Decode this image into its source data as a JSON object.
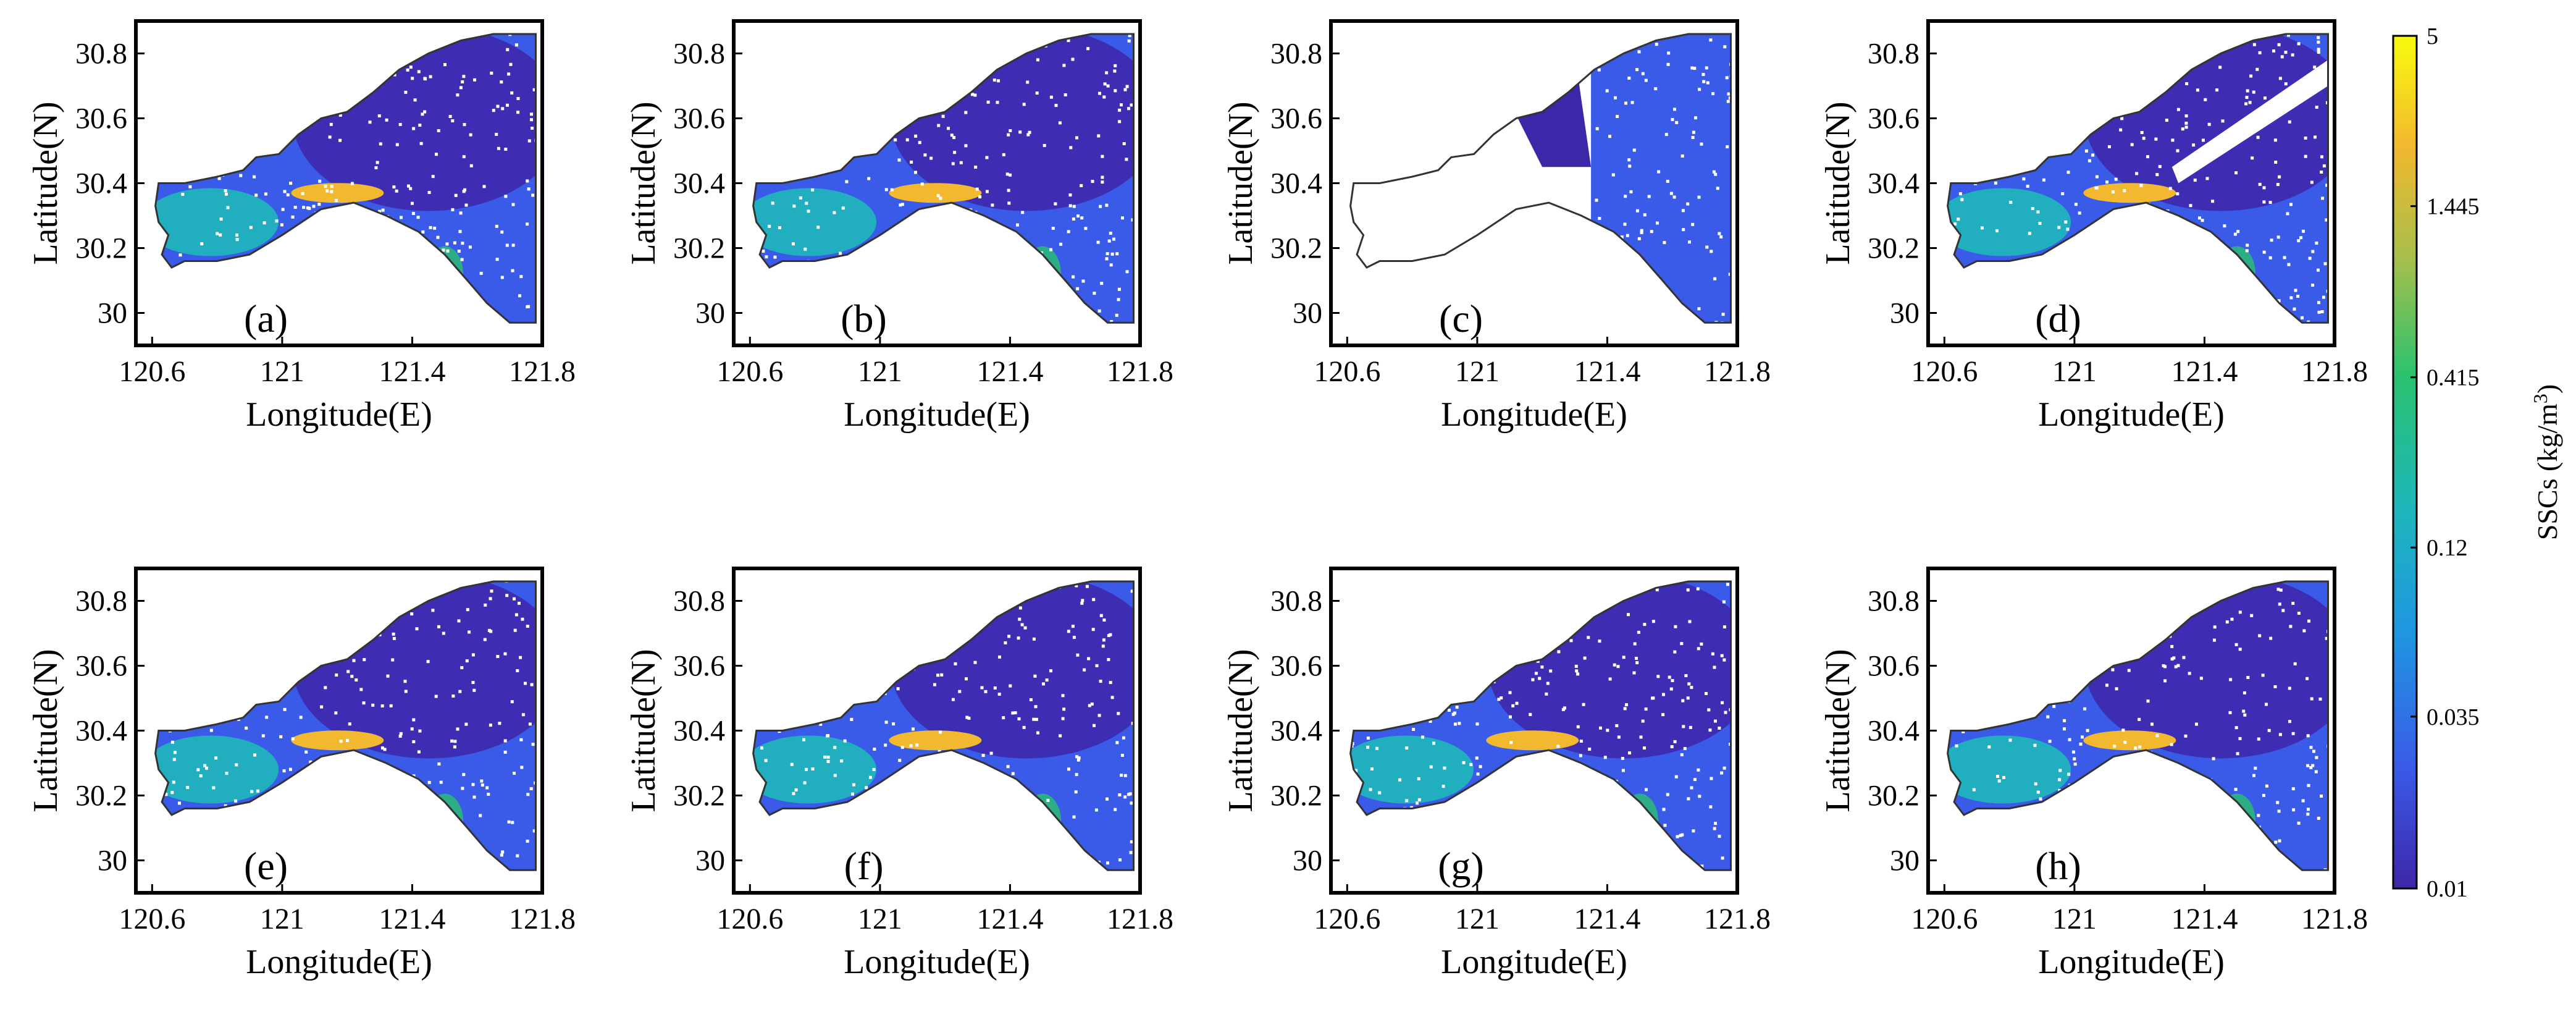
{
  "figure": {
    "x_label": "Longitude(E)",
    "y_label": "Latitude(N)",
    "x_ticks": [
      "120.6",
      "121",
      "121.4",
      "121.8"
    ],
    "x_tick_values": [
      120.6,
      121.0,
      121.4,
      121.8
    ],
    "y_ticks": [
      "30.8",
      "30.6",
      "30.4",
      "30.2",
      "30"
    ],
    "y_tick_values": [
      30.8,
      30.6,
      30.4,
      30.2,
      30.0
    ],
    "x_range": [
      120.55,
      121.8
    ],
    "y_range": [
      29.9,
      30.9
    ]
  },
  "panels": [
    {
      "label": "(a)",
      "mask": "full"
    },
    {
      "label": "(b)",
      "mask": "full"
    },
    {
      "label": "(c)",
      "mask": "east-only"
    },
    {
      "label": "(d)",
      "mask": "full-with-gap"
    },
    {
      "label": "(e)",
      "mask": "full"
    },
    {
      "label": "(f)",
      "mask": "full"
    },
    {
      "label": "(g)",
      "mask": "full"
    },
    {
      "label": "(h)",
      "mask": "full"
    }
  ],
  "colorbar": {
    "title": "SSCs (kg/m",
    "title_superscript": "3",
    "title_close": ")",
    "tick_labels": [
      "5",
      "1.445",
      "0.415",
      "0.12",
      "0.035",
      "0.01"
    ],
    "tick_values": [
      5,
      1.445,
      0.415,
      0.12,
      0.035,
      0.01
    ],
    "scale": "log",
    "colors": [
      "#3e26a8",
      "#3a5ae8",
      "#1f96e0",
      "#1fb7b9",
      "#29c26f",
      "#a7bf4a",
      "#f2b82f",
      "#f9fb0e"
    ]
  },
  "chart_data": {
    "type": "heatmap",
    "title": "",
    "xlabel": "Longitude(E)",
    "ylabel": "Latitude(N)",
    "xlim": [
      120.55,
      121.8
    ],
    "ylim": [
      29.9,
      30.9
    ],
    "colorbar_label": "SSCs (kg/m3)",
    "colorbar_range": [
      0.01,
      5
    ],
    "panels": [
      "(a)",
      "(b)",
      "(c)",
      "(d)",
      "(e)",
      "(f)",
      "(g)",
      "(h)"
    ]
  }
}
